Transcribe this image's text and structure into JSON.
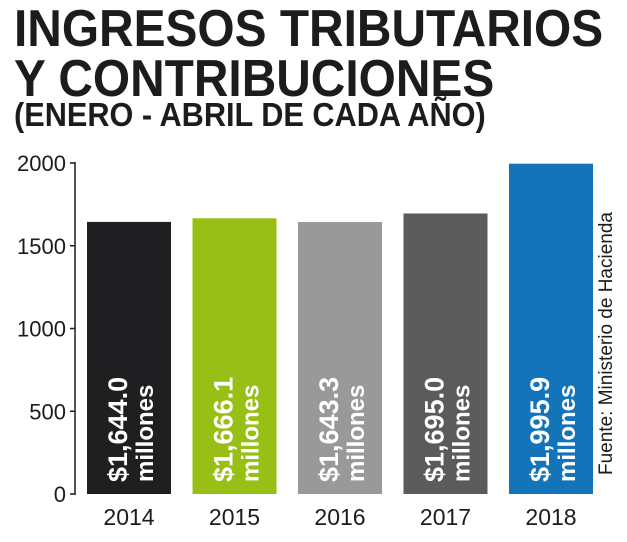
{
  "header": {
    "title_line1": "INGRESOS TRIBUTARIOS",
    "title_line2": "Y CONTRIBUCIONES",
    "subtitle": "(ENERO - ABRIL DE CADA AÑO)"
  },
  "source": "Fuente: Ministerio de Hacienda",
  "chart_data": {
    "type": "bar",
    "categories": [
      "2014",
      "2015",
      "2016",
      "2017",
      "2018"
    ],
    "values": [
      1644.0,
      1666.1,
      1643.3,
      1695.0,
      1995.9
    ],
    "value_labels": [
      "$1,644.0",
      "$1,666.1",
      "$1,643.3",
      "$1,695.0",
      "$1,995.9"
    ],
    "unit_label": "millones",
    "colors": [
      "#1f1e20",
      "#98bf15",
      "#999999",
      "#5b5b5b",
      "#1474b9"
    ],
    "yticks": [
      "0",
      "500",
      "1000",
      "1500",
      "2000"
    ],
    "ylim": [
      0,
      2000
    ],
    "grid": false,
    "legend": "none"
  }
}
